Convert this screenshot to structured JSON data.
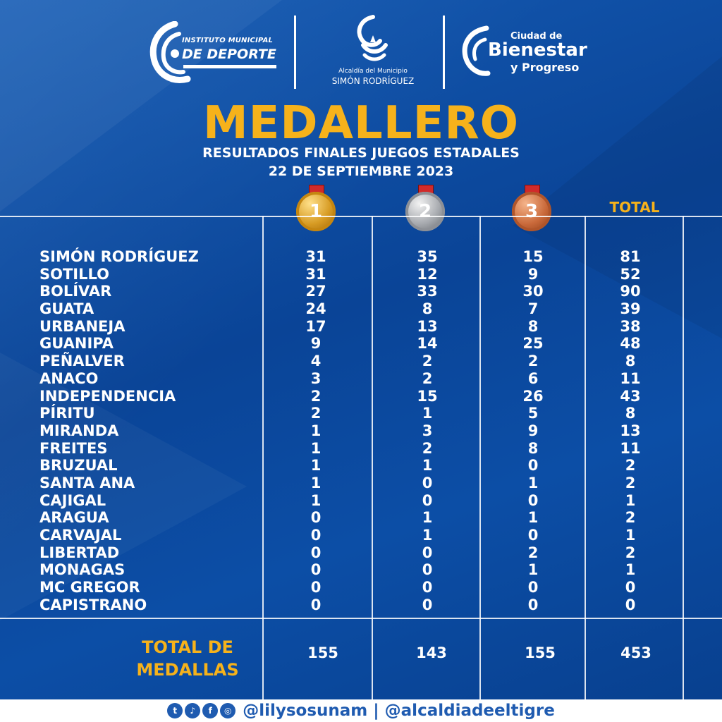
{
  "logos": {
    "deporte_line1": "INSTITUTO MUNICIPAL",
    "deporte_line2": "DE DEPORTE",
    "alcaldia_line1": "Alcaldía del Municipio",
    "alcaldia_line2": "SIMÓN RODRÍGUEZ",
    "bienestar_line1": "Ciudad de",
    "bienestar_line2": "Bienestar",
    "bienestar_line3": "y Progreso"
  },
  "header": {
    "title": "MEDALLERO",
    "subtitle1": "RESULTADOS FINALES JUEGOS ESTADALES",
    "subtitle2": "22 DE SEPTIEMBRE 2023"
  },
  "medals": {
    "gold": "1",
    "silver": "2",
    "bronze": "3",
    "total_label": "TOTAL"
  },
  "colors": {
    "accent": "#f6b21b",
    "background": "#0c4aa0",
    "text": "#ffffff"
  },
  "rows": [
    {
      "name": "SIMÓN RODRÍGUEZ",
      "gold": "31",
      "silver": "35",
      "bronze": "15",
      "total": "81"
    },
    {
      "name": "SOTILLO",
      "gold": "31",
      "silver": "12",
      "bronze": "9",
      "total": "52"
    },
    {
      "name": "BOLÍVAR",
      "gold": "27",
      "silver": "33",
      "bronze": "30",
      "total": "90"
    },
    {
      "name": "GUATA",
      "gold": "24",
      "silver": "8",
      "bronze": "7",
      "total": "39"
    },
    {
      "name": "URBANEJA",
      "gold": "17",
      "silver": "13",
      "bronze": "8",
      "total": "38"
    },
    {
      "name": "GUANIPA",
      "gold": "9",
      "silver": "14",
      "bronze": "25",
      "total": "48"
    },
    {
      "name": "PEÑALVER",
      "gold": "4",
      "silver": "2",
      "bronze": "2",
      "total": "8"
    },
    {
      "name": "ANACO",
      "gold": "3",
      "silver": "2",
      "bronze": "6",
      "total": "11"
    },
    {
      "name": "INDEPENDENCIA",
      "gold": "2",
      "silver": "15",
      "bronze": "26",
      "total": "43"
    },
    {
      "name": "PÍRITU",
      "gold": "2",
      "silver": "1",
      "bronze": "5",
      "total": "8"
    },
    {
      "name": "MIRANDA",
      "gold": "1",
      "silver": "3",
      "bronze": "9",
      "total": "13"
    },
    {
      "name": "FREITES",
      "gold": "1",
      "silver": "2",
      "bronze": "8",
      "total": "11"
    },
    {
      "name": "BRUZUAL",
      "gold": "1",
      "silver": "1",
      "bronze": "0",
      "total": "2"
    },
    {
      "name": "SANTA ANA",
      "gold": "1",
      "silver": "0",
      "bronze": "1",
      "total": "2"
    },
    {
      "name": "CAJIGAL",
      "gold": "1",
      "silver": "0",
      "bronze": "0",
      "total": "1"
    },
    {
      "name": "ARAGUA",
      "gold": "0",
      "silver": "1",
      "bronze": "1",
      "total": "2"
    },
    {
      "name": "CARVAJAL",
      "gold": "0",
      "silver": "1",
      "bronze": "0",
      "total": "1"
    },
    {
      "name": "LIBERTAD",
      "gold": "0",
      "silver": "0",
      "bronze": "2",
      "total": "2"
    },
    {
      "name": "MONAGAS",
      "gold": "0",
      "silver": "0",
      "bronze": "1",
      "total": "1"
    },
    {
      "name": "MC GREGOR",
      "gold": "0",
      "silver": "0",
      "bronze": "0",
      "total": "0"
    },
    {
      "name": "CAPISTRANO",
      "gold": "0",
      "silver": "0",
      "bronze": "0",
      "total": "0"
    }
  ],
  "totals": {
    "label_line1": "TOTAL DE",
    "label_line2": "MEDALLAS",
    "gold": "155",
    "silver": "143",
    "bronze": "155",
    "total": "453"
  },
  "footer": {
    "icons": [
      "twitter-icon",
      "tiktok-icon",
      "facebook-icon",
      "instagram-icon"
    ],
    "handles": "@lilysosunam | @alcaldiadeeltigre"
  }
}
